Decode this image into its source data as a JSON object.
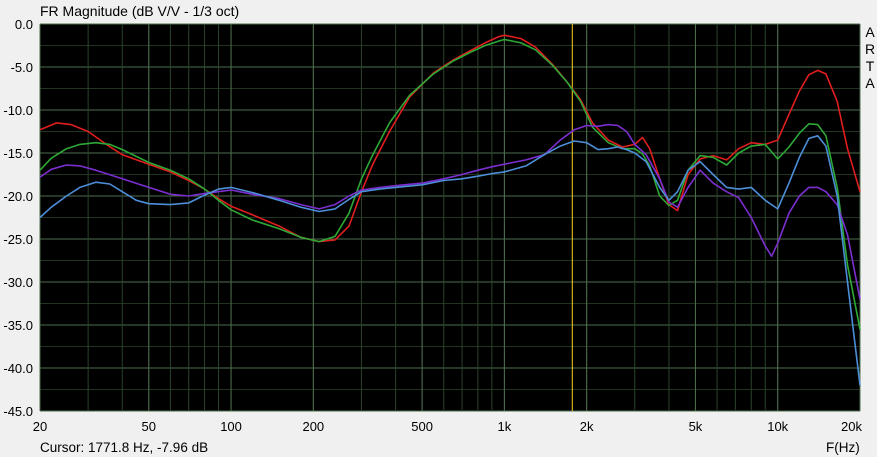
{
  "title": "FR Magnitude (dB V/V - 1/3 oct)",
  "brand_letters": [
    "A",
    "R",
    "T",
    "A"
  ],
  "cursor_readout": "Cursor: 1771.8 Hz, -7.96 dB",
  "chart_data": {
    "type": "line",
    "xlabel": "F(Hz)",
    "x_scale": "log",
    "xlim": [
      20,
      20000
    ],
    "ylim": [
      -45,
      0
    ],
    "x_ticks": [
      {
        "value": 20,
        "label": "20"
      },
      {
        "value": 50,
        "label": "50"
      },
      {
        "value": 100,
        "label": "100"
      },
      {
        "value": 200,
        "label": "200"
      },
      {
        "value": 500,
        "label": "500"
      },
      {
        "value": 1000,
        "label": "1k"
      },
      {
        "value": 2000,
        "label": "2k"
      },
      {
        "value": 5000,
        "label": "5k"
      },
      {
        "value": 10000,
        "label": "10k"
      },
      {
        "value": 20000,
        "label": "20k"
      }
    ],
    "y_ticks": [
      {
        "value": 0,
        "label": "0.0"
      },
      {
        "value": -5,
        "label": "-5.0"
      },
      {
        "value": -10,
        "label": "-10.0"
      },
      {
        "value": -15,
        "label": "-15.0"
      },
      {
        "value": -20,
        "label": "-20.0"
      },
      {
        "value": -25,
        "label": "-25.0"
      },
      {
        "value": -30,
        "label": "-30.0"
      },
      {
        "value": -35,
        "label": "-35.0"
      },
      {
        "value": -40,
        "label": "-40.0"
      },
      {
        "value": -45,
        "label": "-45.0"
      }
    ],
    "grid": true,
    "cursor_x": 1771.8,
    "series": [
      {
        "color": "#e01e1e",
        "points": [
          [
            20,
            -12.3
          ],
          [
            23,
            -11.5
          ],
          [
            26,
            -11.7
          ],
          [
            30,
            -12.5
          ],
          [
            35,
            -14.0
          ],
          [
            40,
            -15.2
          ],
          [
            50,
            -16.3
          ],
          [
            60,
            -17.2
          ],
          [
            70,
            -18.2
          ],
          [
            80,
            -19.2
          ],
          [
            90,
            -20.3
          ],
          [
            100,
            -21.2
          ],
          [
            120,
            -22.2
          ],
          [
            150,
            -23.5
          ],
          [
            180,
            -24.8
          ],
          [
            210,
            -25.3
          ],
          [
            240,
            -25.1
          ],
          [
            270,
            -23.5
          ],
          [
            300,
            -19.5
          ],
          [
            330,
            -16.3
          ],
          [
            380,
            -12.5
          ],
          [
            450,
            -8.5
          ],
          [
            550,
            -5.7
          ],
          [
            650,
            -4.2
          ],
          [
            750,
            -3.1
          ],
          [
            850,
            -2.2
          ],
          [
            950,
            -1.5
          ],
          [
            1000,
            -1.3
          ],
          [
            1150,
            -1.7
          ],
          [
            1300,
            -2.7
          ],
          [
            1500,
            -4.7
          ],
          [
            1700,
            -6.8
          ],
          [
            1900,
            -8.8
          ],
          [
            2100,
            -11.5
          ],
          [
            2400,
            -13.5
          ],
          [
            2700,
            -14.3
          ],
          [
            3000,
            -14.0
          ],
          [
            3200,
            -13.2
          ],
          [
            3400,
            -14.5
          ],
          [
            3700,
            -18.0
          ],
          [
            4000,
            -21.0
          ],
          [
            4300,
            -21.7
          ],
          [
            4700,
            -17.5
          ],
          [
            5200,
            -15.7
          ],
          [
            5800,
            -15.3
          ],
          [
            6500,
            -15.8
          ],
          [
            7200,
            -14.5
          ],
          [
            8000,
            -13.8
          ],
          [
            9000,
            -14.0
          ],
          [
            10000,
            -13.5
          ],
          [
            11000,
            -10.5
          ],
          [
            12000,
            -7.8
          ],
          [
            13000,
            -5.9
          ],
          [
            14000,
            -5.4
          ],
          [
            15000,
            -5.8
          ],
          [
            16500,
            -9.0
          ],
          [
            18000,
            -14.5
          ],
          [
            20000,
            -19.5
          ]
        ]
      },
      {
        "color": "#2ea836",
        "points": [
          [
            20,
            -17.0
          ],
          [
            22,
            -15.6
          ],
          [
            25,
            -14.5
          ],
          [
            28,
            -14.0
          ],
          [
            32,
            -13.8
          ],
          [
            36,
            -14.0
          ],
          [
            40,
            -14.6
          ],
          [
            50,
            -16.1
          ],
          [
            60,
            -17.0
          ],
          [
            70,
            -18.0
          ],
          [
            80,
            -19.2
          ],
          [
            90,
            -20.5
          ],
          [
            100,
            -21.6
          ],
          [
            120,
            -22.8
          ],
          [
            150,
            -23.8
          ],
          [
            180,
            -24.8
          ],
          [
            210,
            -25.3
          ],
          [
            240,
            -24.7
          ],
          [
            270,
            -22.0
          ],
          [
            300,
            -18.0
          ],
          [
            330,
            -15.2
          ],
          [
            380,
            -11.5
          ],
          [
            450,
            -8.3
          ],
          [
            550,
            -5.8
          ],
          [
            650,
            -4.3
          ],
          [
            750,
            -3.3
          ],
          [
            850,
            -2.5
          ],
          [
            950,
            -2.0
          ],
          [
            1000,
            -1.8
          ],
          [
            1150,
            -2.2
          ],
          [
            1300,
            -3.0
          ],
          [
            1500,
            -4.8
          ],
          [
            1700,
            -6.8
          ],
          [
            1900,
            -9.0
          ],
          [
            2100,
            -12.0
          ],
          [
            2400,
            -13.8
          ],
          [
            2700,
            -14.5
          ],
          [
            3000,
            -14.5
          ],
          [
            3200,
            -15.1
          ],
          [
            3400,
            -16.5
          ],
          [
            3700,
            -20.0
          ],
          [
            4000,
            -21.1
          ],
          [
            4300,
            -20.5
          ],
          [
            4700,
            -17.0
          ],
          [
            5200,
            -15.3
          ],
          [
            5800,
            -15.5
          ],
          [
            6500,
            -16.4
          ],
          [
            7200,
            -15.0
          ],
          [
            8000,
            -14.2
          ],
          [
            9000,
            -14.0
          ],
          [
            10000,
            -15.7
          ],
          [
            11000,
            -14.3
          ],
          [
            12000,
            -12.7
          ],
          [
            13000,
            -11.6
          ],
          [
            14000,
            -11.7
          ],
          [
            15000,
            -13.0
          ],
          [
            16500,
            -19.0
          ],
          [
            18000,
            -28.0
          ],
          [
            20000,
            -35.5
          ]
        ]
      },
      {
        "color": "#7c2fd0",
        "points": [
          [
            20,
            -17.8
          ],
          [
            22,
            -16.9
          ],
          [
            25,
            -16.4
          ],
          [
            28,
            -16.5
          ],
          [
            32,
            -17.0
          ],
          [
            40,
            -18.0
          ],
          [
            50,
            -19.0
          ],
          [
            60,
            -19.8
          ],
          [
            70,
            -20.0
          ],
          [
            80,
            -19.7
          ],
          [
            90,
            -19.5
          ],
          [
            100,
            -19.3
          ],
          [
            120,
            -19.8
          ],
          [
            150,
            -20.3
          ],
          [
            180,
            -21.0
          ],
          [
            210,
            -21.5
          ],
          [
            240,
            -21.0
          ],
          [
            270,
            -20.0
          ],
          [
            300,
            -19.3
          ],
          [
            350,
            -19.0
          ],
          [
            400,
            -18.8
          ],
          [
            500,
            -18.5
          ],
          [
            600,
            -18.0
          ],
          [
            700,
            -17.5
          ],
          [
            800,
            -17.0
          ],
          [
            900,
            -16.6
          ],
          [
            1000,
            -16.3
          ],
          [
            1200,
            -15.8
          ],
          [
            1400,
            -15.2
          ],
          [
            1600,
            -13.5
          ],
          [
            1800,
            -12.3
          ],
          [
            2000,
            -11.8
          ],
          [
            2200,
            -11.9
          ],
          [
            2400,
            -11.7
          ],
          [
            2600,
            -11.8
          ],
          [
            2800,
            -12.5
          ],
          [
            3000,
            -14.0
          ],
          [
            3300,
            -15.2
          ],
          [
            3700,
            -18.0
          ],
          [
            4000,
            -20.7
          ],
          [
            4300,
            -21.3
          ],
          [
            4700,
            -19.0
          ],
          [
            5200,
            -17.0
          ],
          [
            5800,
            -18.5
          ],
          [
            6500,
            -19.5
          ],
          [
            7200,
            -20.2
          ],
          [
            8000,
            -22.5
          ],
          [
            9000,
            -25.8
          ],
          [
            9500,
            -27.0
          ],
          [
            10000,
            -25.5
          ],
          [
            11000,
            -22.0
          ],
          [
            12000,
            -20.0
          ],
          [
            13000,
            -19.0
          ],
          [
            14000,
            -19.0
          ],
          [
            15000,
            -19.5
          ],
          [
            16500,
            -21.0
          ],
          [
            18000,
            -24.5
          ],
          [
            20000,
            -32.0
          ]
        ]
      },
      {
        "color": "#4d8ed8",
        "points": [
          [
            20,
            -22.5
          ],
          [
            22,
            -21.3
          ],
          [
            25,
            -20.0
          ],
          [
            28,
            -19.0
          ],
          [
            32,
            -18.4
          ],
          [
            36,
            -18.6
          ],
          [
            40,
            -19.5
          ],
          [
            45,
            -20.5
          ],
          [
            50,
            -20.9
          ],
          [
            60,
            -21.0
          ],
          [
            70,
            -20.8
          ],
          [
            80,
            -19.9
          ],
          [
            90,
            -19.2
          ],
          [
            100,
            -19.0
          ],
          [
            120,
            -19.6
          ],
          [
            150,
            -20.5
          ],
          [
            180,
            -21.3
          ],
          [
            210,
            -21.8
          ],
          [
            240,
            -21.5
          ],
          [
            270,
            -20.4
          ],
          [
            300,
            -19.5
          ],
          [
            350,
            -19.2
          ],
          [
            400,
            -19.0
          ],
          [
            500,
            -18.7
          ],
          [
            600,
            -18.2
          ],
          [
            700,
            -18.0
          ],
          [
            800,
            -17.7
          ],
          [
            900,
            -17.4
          ],
          [
            1000,
            -17.2
          ],
          [
            1200,
            -16.5
          ],
          [
            1400,
            -15.2
          ],
          [
            1600,
            -14.2
          ],
          [
            1800,
            -13.6
          ],
          [
            2000,
            -13.8
          ],
          [
            2200,
            -14.6
          ],
          [
            2400,
            -14.5
          ],
          [
            2600,
            -14.3
          ],
          [
            2800,
            -14.6
          ],
          [
            3000,
            -15.0
          ],
          [
            3300,
            -16.0
          ],
          [
            3700,
            -19.0
          ],
          [
            4000,
            -20.5
          ],
          [
            4300,
            -19.5
          ],
          [
            4700,
            -17.0
          ],
          [
            5200,
            -16.0
          ],
          [
            5800,
            -17.5
          ],
          [
            6500,
            -19.0
          ],
          [
            7200,
            -19.2
          ],
          [
            8000,
            -19.0
          ],
          [
            9000,
            -20.5
          ],
          [
            10000,
            -21.5
          ],
          [
            11000,
            -18.5
          ],
          [
            12000,
            -15.5
          ],
          [
            13000,
            -13.3
          ],
          [
            14000,
            -13.0
          ],
          [
            15000,
            -14.2
          ],
          [
            16500,
            -20.0
          ],
          [
            18000,
            -30.0
          ],
          [
            20000,
            -42.0
          ]
        ]
      }
    ]
  }
}
